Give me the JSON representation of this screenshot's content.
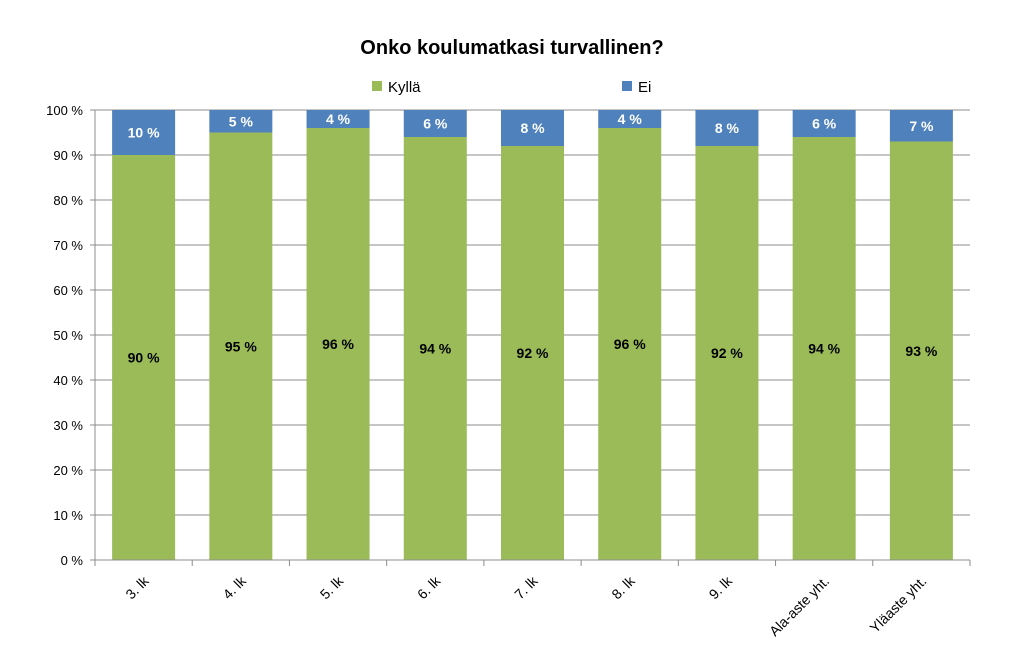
{
  "chart_data": {
    "type": "bar",
    "stacked": true,
    "title": "Onko koulumatkasi turvallinen?",
    "xlabel": "",
    "ylabel": "",
    "categories": [
      "3. lk",
      "4. lk",
      "5. lk",
      "6. lk",
      "7. lk",
      "8. lk",
      "9. lk",
      "Ala-aste yht.",
      "Yläaste yht."
    ],
    "series": [
      {
        "name": "Kyllä",
        "color": "#9BBB59",
        "values": [
          90,
          95,
          96,
          94,
          92,
          96,
          92,
          94,
          93
        ]
      },
      {
        "name": "Ei",
        "color": "#4F81BD",
        "values": [
          10,
          5,
          4,
          6,
          8,
          4,
          8,
          6,
          7
        ]
      }
    ],
    "ylim": [
      0,
      100
    ],
    "yticks": [
      "0 %",
      "10 %",
      "20 %",
      "30 %",
      "40 %",
      "50 %",
      "60 %",
      "70 %",
      "80 %",
      "90 %",
      "100 %"
    ],
    "grid": true,
    "legend_position": "top"
  }
}
